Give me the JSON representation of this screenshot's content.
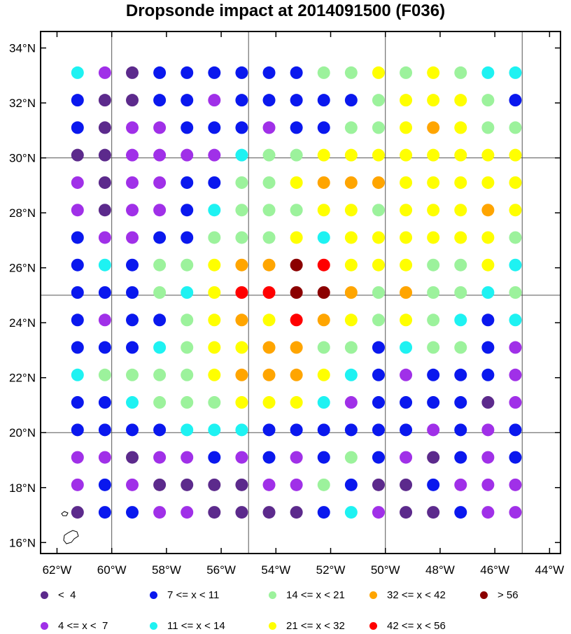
{
  "chart_data": {
    "type": "scatter",
    "title": "Dropsonde impact at 2014091500 (F036)",
    "xlabel": "",
    "ylabel": "",
    "xlim": [
      -62.6,
      -43.6
    ],
    "ylim": [
      15.6,
      34.6
    ],
    "x_ticks": [
      -62,
      -60,
      -58,
      -56,
      -54,
      -52,
      -50,
      -48,
      -46,
      -44
    ],
    "x_tick_labels": [
      "62°W",
      "60°W",
      "58°W",
      "56°W",
      "54°W",
      "52°W",
      "50°W",
      "48°W",
      "46°W",
      "44°W"
    ],
    "y_ticks": [
      16,
      18,
      20,
      22,
      24,
      26,
      28,
      30,
      32,
      34
    ],
    "y_tick_labels": [
      "16°N",
      "18°N",
      "20°N",
      "22°N",
      "24°N",
      "26°N",
      "28°N",
      "30°N",
      "32°N",
      "34°N"
    ],
    "grid_lon": [
      -60,
      -55,
      -50,
      -45
    ],
    "grid_lat": [
      20,
      25,
      30
    ],
    "lons": [
      -61.25,
      -60.25,
      -59.25,
      -58.25,
      -57.25,
      -56.25,
      -55.25,
      -54.25,
      -53.25,
      -52.25,
      -51.25,
      -50.25,
      -49.25,
      -48.25,
      -47.25,
      -46.25,
      -45.25
    ],
    "lats": [
      33.1,
      32.1,
      31.1,
      30.1,
      29.1,
      28.1,
      27.1,
      26.1,
      25.1,
      24.1,
      23.1,
      22.1,
      21.1,
      20.1,
      19.1,
      18.1,
      17.1
    ],
    "category_codes": [
      "DP: < 4",
      "P: 4-7",
      "B: 7-11",
      "C: 11-14",
      "G: 14-21",
      "Y: 21-32",
      "O: 32-42",
      "R: 42-56",
      "M: > 56"
    ],
    "rows": [
      "CPDBBBBBBGGYGYGCC",
      "BDDBBPBBBBBGYYYGB",
      "BDPPBBBPBBGGYOYGG",
      "DDPPPPCGGYYYYYYYY",
      "PDPPBBGGYOOOYYYYY",
      "PDPPBCGGGYYGYYYOY",
      "BPPBBGGGYCYYYYYYG",
      "BCBGGYOOMRYYYGGYC",
      "BBBGCYRRMMOGOGGCG",
      "BPBBGYOYROYGYGCBC",
      "BBBCGYYOOGGBCGGBP",
      "CGGGGYOOOYCBPBBBP",
      "BBCGGGYYYCPBBBBDP",
      "BBBBCCCBBBBBBPBPB",
      "PPDPPBPBPBGBPDBPB",
      "PBPDDDDPPGBDDBPPP",
      "DBBPPDDDDBCPDDBPP"
    ],
    "legend": [
      {
        "code": "DP",
        "label": "<  4",
        "color": "#5c2a8c"
      },
      {
        "code": "P",
        "label": "4 <= x <  7",
        "color": "#a030e8"
      },
      {
        "code": "B",
        "label": "7 <= x < 11",
        "color": "#0a18ee"
      },
      {
        "code": "C",
        "label": "11 <= x < 14",
        "color": "#1ef2f2"
      },
      {
        "code": "G",
        "label": "14 <= x < 21",
        "color": "#9cf29c"
      },
      {
        "code": "Y",
        "label": "21 <= x < 32",
        "color": "#ffff00"
      },
      {
        "code": "O",
        "label": "32 <= x < 42",
        "color": "#ffa500"
      },
      {
        "code": "R",
        "label": "42 <= x < 56",
        "color": "#ff0000"
      },
      {
        "code": "M",
        "label": "> 56",
        "color": "#8b0000"
      }
    ]
  }
}
